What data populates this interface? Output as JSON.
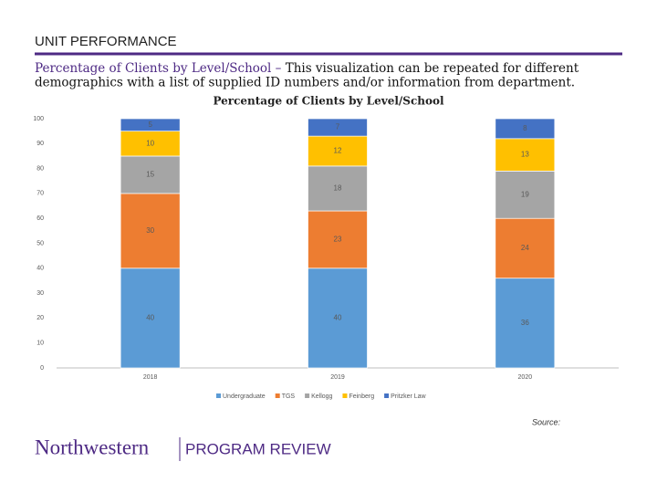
{
  "slide": {
    "header": "UNIT PERFORMANCE",
    "lead": "Percentage of Clients by Level/School –",
    "lead_rest": "This visualization can be repeated for different",
    "line2": "demographics with a list of supplied ID numbers and/or information from department.",
    "source": "Source:",
    "logo": "Northwestern",
    "logo_tag": "PROGRAM REVIEW"
  },
  "chart_data": {
    "type": "stacked_bar",
    "title": "Percentage of Clients by Level/School",
    "categories": [
      "2018",
      "2019",
      "2020"
    ],
    "series": [
      {
        "name": "Undergraduate",
        "color": "#5b9bd5",
        "values": [
          40,
          40,
          36
        ]
      },
      {
        "name": "TGS",
        "color": "#ed7d31",
        "values": [
          30,
          23,
          24
        ]
      },
      {
        "name": "Kellogg",
        "color": "#a5a5a5",
        "values": [
          15,
          18,
          19
        ]
      },
      {
        "name": "Feinberg",
        "color": "#ffc000",
        "values": [
          10,
          12,
          13
        ]
      },
      {
        "name": "Pritzker Law",
        "color": "#4472c4",
        "values": [
          5,
          7,
          8
        ]
      }
    ],
    "ylim": [
      0,
      100
    ],
    "yticks": [
      0,
      10,
      20,
      30,
      40,
      50,
      60,
      70,
      80,
      90,
      100
    ],
    "grid": false,
    "legend": "bottom"
  }
}
